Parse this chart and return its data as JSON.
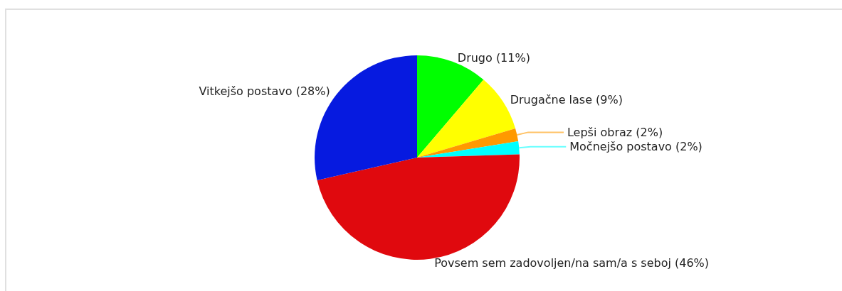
{
  "chart_data": {
    "type": "pie",
    "categories": [
      "Drugo",
      "Drugačne lase",
      "Lepši obraz",
      "Močnejšo postavo",
      "Povsem sem zadovoljen/na sam/a s seboj",
      "Vitkejšo postavo"
    ],
    "values": [
      11,
      9,
      2,
      2,
      46,
      28
    ],
    "colors": [
      "#00ff00",
      "#ffff00",
      "#ff9900",
      "#00ffff",
      "#e0090e",
      "#061ae0"
    ],
    "value_labels": [
      "(11%)",
      "(9%)",
      "(2%)",
      "(2%)",
      "(46%)",
      "(28%)"
    ]
  }
}
